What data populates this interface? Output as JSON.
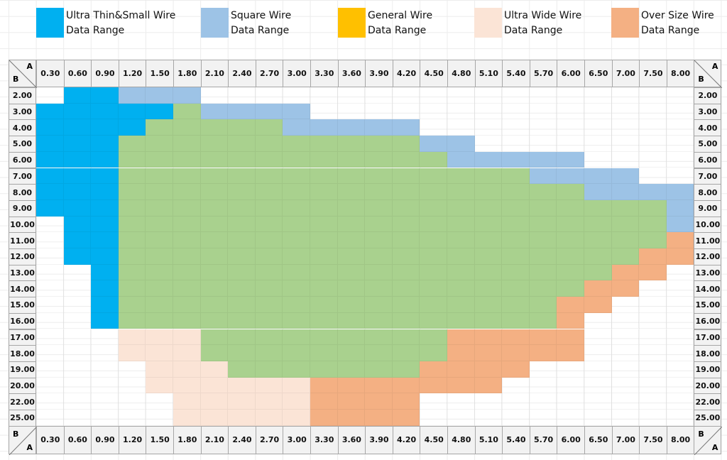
{
  "legend": [
    {
      "code": "U",
      "line1": "Ultra Thin&Small Wire",
      "line2": "Data Range",
      "color": "#00b0f0"
    },
    {
      "code": "S",
      "line1": "Square Wire",
      "line2": "Data Range",
      "color": "#9dc3e6"
    },
    {
      "code": "G",
      "line1": "General Wire",
      "line2": "Data Range",
      "color": "#ffc000"
    },
    {
      "code": "W",
      "line1": "Ultra Wide Wire",
      "line2": "Data Range",
      "color": "#fbe4d6"
    },
    {
      "code": "O",
      "line1": "Over Size Wire",
      "line2": "Data Range",
      "color": "#f4b083"
    }
  ],
  "general_cell_color": "#a9d18e",
  "chart_data": {
    "type": "heatmap",
    "corner": {
      "a": "A",
      "b": "B"
    },
    "x_axis_label": "A",
    "y_axis_label": "B",
    "columns": [
      "0.30",
      "0.60",
      "0.90",
      "1.20",
      "1.50",
      "1.80",
      "2.10",
      "2.40",
      "2.70",
      "3.00",
      "3.30",
      "3.60",
      "3.90",
      "4.20",
      "4.50",
      "4.80",
      "5.10",
      "5.40",
      "5.70",
      "6.00",
      "6.50",
      "7.00",
      "7.50",
      "8.00"
    ],
    "rows": [
      {
        "label": "2.00",
        "cells": "-UUSSS------------------"
      },
      {
        "label": "3.00",
        "cells": "UUUUUGSSSS--------------"
      },
      {
        "label": "4.00",
        "cells": "UUUUGGGGGSSSSS----------"
      },
      {
        "label": "5.00",
        "cells": "UUUGGGGGGGGGGGSS--------"
      },
      {
        "label": "6.00",
        "cells": "UUUGGGGGGGGGGGGSSSSS----"
      },
      {
        "label": "7.00",
        "cells": "UUUGGGGGGGGGGGGGGGSSSS--"
      },
      {
        "label": "8.00",
        "cells": "UUUGGGGGGGGGGGGGGGGGSSSS"
      },
      {
        "label": "9.00",
        "cells": "UUUGGGGGGGGGGGGGGGGGGGGS"
      },
      {
        "label": "10.00",
        "cells": "-UUGGGGGGGGGGGGGGGGGGGGS"
      },
      {
        "label": "11.00",
        "cells": "-UUGGGGGGGGGGGGGGGGGGGGO"
      },
      {
        "label": "12.00",
        "cells": "-UUGGGGGGGGGGGGGGGGGGGOO"
      },
      {
        "label": "13.00",
        "cells": "--UGGGGGGGGGGGGGGGGGGOO-"
      },
      {
        "label": "14.00",
        "cells": "--UGGGGGGGGGGGGGGGGGOO--"
      },
      {
        "label": "15.00",
        "cells": "--UGGGGGGGGGGGGGGGGOO---"
      },
      {
        "label": "16.00",
        "cells": "--UGGGGGGGGGGGGGGGGO----"
      },
      {
        "label": "17.00",
        "cells": "---WWWGGGGGGGGGOOOOO----"
      },
      {
        "label": "18.00",
        "cells": "---WWWGGGGGGGGGOOOOO----"
      },
      {
        "label": "19.00",
        "cells": "----WWWGGGGGGGOOOO------"
      },
      {
        "label": "20.00",
        "cells": "----WWWWWWOOOOOOO-------"
      },
      {
        "label": "22.00",
        "cells": "-----WWWWWOOOO----------"
      },
      {
        "label": "25.00",
        "cells": "-----WWWWWOOOO----------"
      }
    ]
  }
}
